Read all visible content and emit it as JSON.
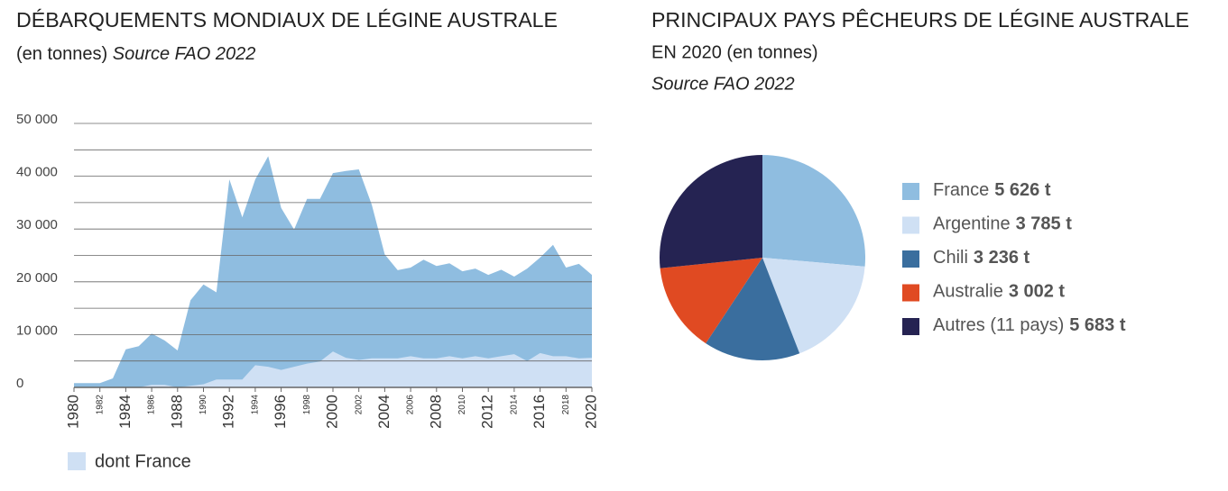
{
  "chart_data": [
    {
      "type": "area",
      "title": "DÉBARQUEMENTS MONDIAUX DE LÉGINE AUSTRALE",
      "subtitle": "(en tonnes)",
      "source": "Source FAO 2022",
      "x": [
        1980,
        1981,
        1982,
        1983,
        1984,
        1985,
        1986,
        1987,
        1988,
        1989,
        1990,
        1991,
        1992,
        1993,
        1994,
        1995,
        1996,
        1997,
        1998,
        1999,
        2000,
        2001,
        2002,
        2003,
        2004,
        2005,
        2006,
        2007,
        2008,
        2009,
        2010,
        2011,
        2012,
        2013,
        2014,
        2015,
        2016,
        2017,
        2018,
        2019,
        2020
      ],
      "series": [
        {
          "color": "#8fbde0",
          "values": [
            800,
            800,
            800,
            1700,
            7200,
            7800,
            10200,
            8900,
            7000,
            16500,
            19500,
            18000,
            39400,
            32200,
            39400,
            43800,
            34000,
            29900,
            35700,
            35700,
            40600,
            41000,
            41300,
            34600,
            25200,
            22200,
            22700,
            24200,
            23000,
            23500,
            22000,
            22500,
            21300,
            22300,
            21000,
            22500,
            24600,
            27000,
            22700,
            23400,
            21300
          ]
        },
        {
          "name": "dont France",
          "color": "#cfe0f4",
          "values": [
            0,
            0,
            0,
            0,
            0,
            0,
            500,
            500,
            0,
            300,
            600,
            1500,
            1500,
            1500,
            4200,
            3900,
            3300,
            3900,
            4500,
            4900,
            6800,
            5600,
            5200,
            5500,
            5500,
            5500,
            5900,
            5500,
            5500,
            5900,
            5500,
            5900,
            5500,
            5900,
            6300,
            5000,
            6500,
            5900,
            5900,
            5500,
            5600
          ]
        }
      ],
      "xlim": [
        1980,
        2020
      ],
      "xticks": [
        1980,
        1982,
        1984,
        1986,
        1988,
        1990,
        1992,
        1994,
        1996,
        1998,
        2000,
        2002,
        2004,
        2006,
        2008,
        2010,
        2012,
        2014,
        2016,
        2018,
        2020
      ],
      "ylim": [
        0,
        50000
      ],
      "yticks": [
        0,
        {
          "value": 5000,
          "label": null
        },
        {
          "value": 10000,
          "label": "10 000"
        },
        {
          "value": 15000,
          "label": null
        },
        {
          "value": 20000,
          "label": "20 000"
        },
        {
          "value": 25000,
          "label": null
        },
        {
          "value": 30000,
          "label": "30 000"
        },
        {
          "value": 35000,
          "label": null
        },
        {
          "value": 40000,
          "label": "40 000"
        },
        {
          "value": 45000,
          "label": null
        },
        {
          "value": 50000,
          "label": "50 000"
        }
      ],
      "grid": true
    },
    {
      "type": "pie",
      "title": "PRINCIPAUX PAYS PÊCHEURS DE LÉGINE AUSTRALE",
      "subtitle": "EN 2020 (en tonnes)",
      "source": "Source FAO 2022",
      "categories": [
        "France",
        "Argentine",
        "Chili",
        "Australie",
        "Autres (11 pays)"
      ],
      "values": [
        5626,
        3785,
        3236,
        3002,
        5683
      ],
      "value_labels": [
        "5 626 t",
        "3 785 t",
        "3 236 t",
        "3 002 t",
        "5 683 t"
      ],
      "colors": [
        "#8fbde0",
        "#cfe0f4",
        "#3a6e9e",
        "#e04a22",
        "#252352"
      ],
      "legend": "right"
    }
  ]
}
